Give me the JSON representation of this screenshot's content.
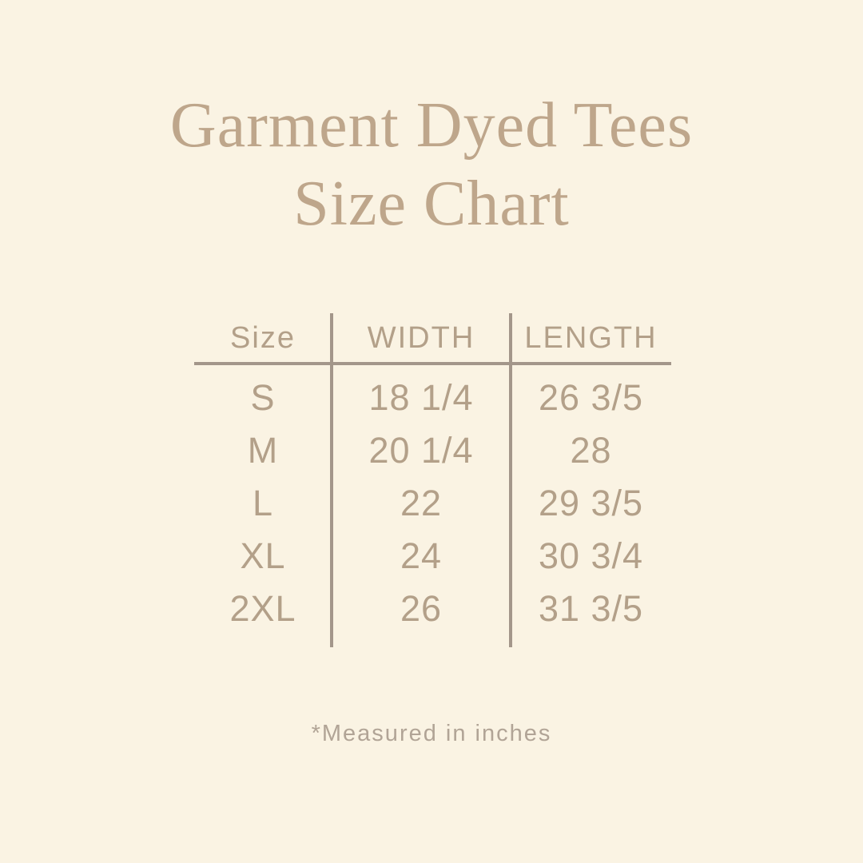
{
  "title": {
    "line1": "Garment Dyed Tees",
    "line2": "Size Chart"
  },
  "table": {
    "headers": {
      "size": "Size",
      "width": "WIDTH",
      "length": "LENGTH"
    },
    "rows": [
      {
        "size": "S",
        "width": "18 1/4",
        "length": "26 3/5"
      },
      {
        "size": "M",
        "width": "20 1/4",
        "length": "28"
      },
      {
        "size": "L",
        "width": "22",
        "length": "29 3/5"
      },
      {
        "size": "XL",
        "width": "24",
        "length": "30 3/4"
      },
      {
        "size": "2XL",
        "width": "26",
        "length": "31 3/5"
      }
    ]
  },
  "footnote": "*Measured in inches",
  "colors": {
    "background": "#FAF3E3",
    "title_text": "#BEA68B",
    "table_text": "#B3A089",
    "divider_lines": "#A3968A",
    "note_text": "#B1A496"
  },
  "chart_data": {
    "type": "table",
    "title": "Garment Dyed Tees Size Chart",
    "columns": [
      "Size",
      "WIDTH",
      "LENGTH"
    ],
    "rows": [
      [
        "S",
        "18 1/4",
        "26 3/5"
      ],
      [
        "M",
        "20 1/4",
        "28"
      ],
      [
        "L",
        "22",
        "29 3/5"
      ],
      [
        "XL",
        "24",
        "30 3/4"
      ],
      [
        "2XL",
        "26",
        "31 3/5"
      ]
    ],
    "units": "inches",
    "note": "*Measured in inches"
  }
}
